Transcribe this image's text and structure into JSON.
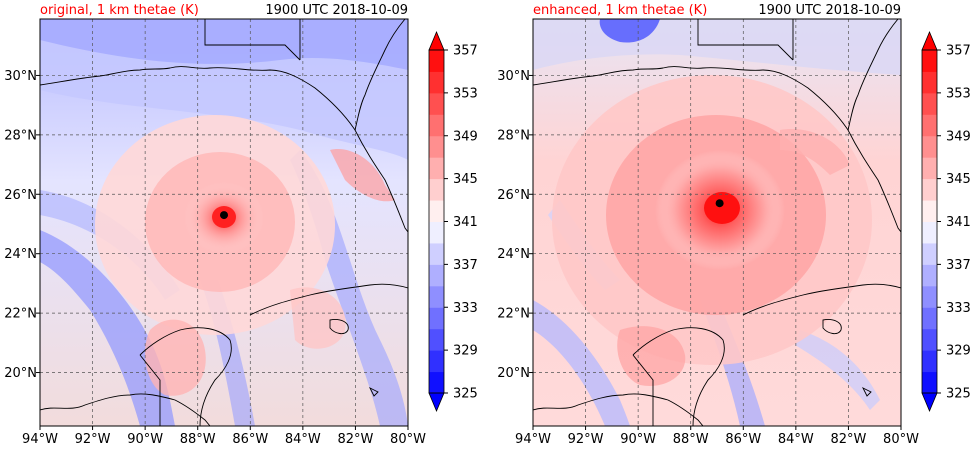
{
  "chart_data": [
    {
      "type": "heatmap",
      "title": "original, 1 km thetae (K)",
      "timestamp": "1900 UTC 2018-10-09",
      "title_color": "#ff0000",
      "xlabel": "",
      "ylabel": "",
      "xlim": [
        -94,
        -80
      ],
      "ylim": [
        18.2,
        31.9
      ],
      "x_ticks": [
        -94,
        -92,
        -90,
        -88,
        -86,
        -84,
        -82,
        -80
      ],
      "x_tick_labels": [
        "94°W",
        "92°W",
        "90°W",
        "88°W",
        "86°W",
        "84°W",
        "82°W",
        "80°W"
      ],
      "y_ticks": [
        20,
        22,
        24,
        26,
        28,
        30
      ],
      "y_tick_labels": [
        "20°N",
        "22°N",
        "24°N",
        "26°N",
        "28°N",
        "30°N"
      ],
      "grid": true,
      "storm_center": {
        "lon": -87.0,
        "lat": 25.3
      },
      "colorbar": {
        "levels": [
          325,
          327,
          329,
          331,
          333,
          335,
          337,
          339,
          341,
          343,
          345,
          347,
          349,
          351,
          353,
          355,
          357
        ],
        "tick_values": [
          325,
          329,
          333,
          337,
          341,
          345,
          349,
          353,
          357
        ],
        "tick_labels": [
          "325",
          "329",
          "333",
          "337",
          "341",
          "345",
          "349",
          "353",
          "357"
        ],
        "colormap": "bwr",
        "extend": "both"
      }
    },
    {
      "type": "heatmap",
      "title": "enhanced, 1 km thetae (K)",
      "timestamp": "1900 UTC 2018-10-09",
      "title_color": "#ff0000",
      "xlabel": "",
      "ylabel": "",
      "xlim": [
        -94,
        -80
      ],
      "ylim": [
        18.2,
        31.9
      ],
      "x_ticks": [
        -94,
        -92,
        -90,
        -88,
        -86,
        -84,
        -82,
        -80
      ],
      "x_tick_labels": [
        "94°W",
        "92°W",
        "90°W",
        "88°W",
        "86°W",
        "84°W",
        "82°W",
        "80°W"
      ],
      "y_ticks": [
        20,
        22,
        24,
        26,
        28,
        30
      ],
      "y_tick_labels": [
        "20°N",
        "22°N",
        "24°N",
        "26°N",
        "28°N",
        "30°N"
      ],
      "grid": true,
      "storm_center": {
        "lon": -86.9,
        "lat": 25.7
      },
      "colorbar": {
        "levels": [
          325,
          327,
          329,
          331,
          333,
          335,
          337,
          339,
          341,
          343,
          345,
          347,
          349,
          351,
          353,
          355,
          357
        ],
        "tick_values": [
          325,
          329,
          333,
          337,
          341,
          345,
          349,
          353,
          357
        ],
        "tick_labels": [
          "325",
          "329",
          "333",
          "337",
          "341",
          "345",
          "349",
          "353",
          "357"
        ],
        "colormap": "bwr",
        "extend": "both"
      }
    }
  ]
}
